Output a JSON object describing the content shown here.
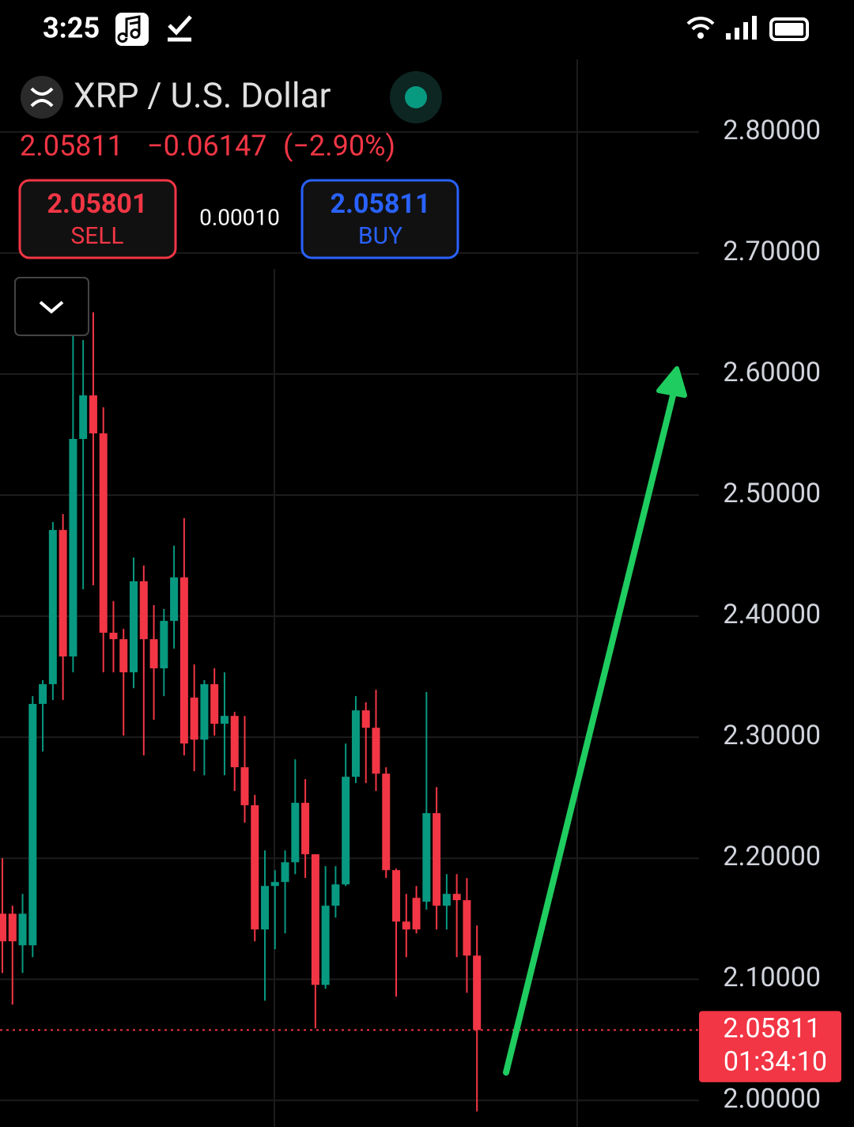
{
  "status_time": "3:25",
  "header": {
    "symbol": "XRP / U.S. Dollar",
    "price": "2.05811",
    "change": "−0.06147",
    "change_pct": "(−2.90%)"
  },
  "trade": {
    "sell_price": "2.05801",
    "sell_label": "SELL",
    "spread": "0.00010",
    "buy_price": "2.05811",
    "buy_label": "BUY"
  },
  "chart_data": {
    "type": "candlestick",
    "up_color": "#089981",
    "down_color": "#f23645",
    "ylim": [
      1.978,
      2.86
    ],
    "yticks": [
      {
        "value": 2.0,
        "label": "2.00000"
      },
      {
        "value": 2.1,
        "label": "2.10000"
      },
      {
        "value": 2.2,
        "label": "2.20000"
      },
      {
        "value": 2.3,
        "label": "2.30000"
      },
      {
        "value": 2.4,
        "label": "2.40000"
      },
      {
        "value": 2.5,
        "label": "2.50000"
      },
      {
        "value": 2.6,
        "label": "2.60000"
      },
      {
        "value": 2.7,
        "label": "2.70000"
      },
      {
        "value": 2.8,
        "label": "2.80000"
      }
    ],
    "grid": true,
    "last_price": 2.05811,
    "countdown": "01:34:10",
    "open": [
      2.1542,
      2.1542,
      2.1281,
      2.1281,
      2.3275,
      2.3438,
      2.4712,
      2.3667,
      2.5464,
      2.5824,
      2.551,
      2.3863,
      2.381,
      2.3536,
      2.4288,
      2.381,
      2.3569,
      2.3961,
      2.432,
      2.3327,
      2.298,
      2.3438,
      2.3111,
      2.3176,
      2.2752,
      2.2438,
      2.1412,
      2.1771,
      2.1804,
      2.1967,
      2.2458,
      2.2033,
      2.0954,
      2.1608,
      2.1784,
      2.2673,
      2.3222,
      2.3078,
      2.2699,
      2.1902,
      2.1477,
      2.1673,
      2.1641,
      2.2373,
      2.1608,
      2.1706,
      2.1654,
      2.1196
    ],
    "high": [
      2.2,
      2.1608,
      2.1706,
      2.334,
      2.3471,
      2.4778,
      2.4843,
      2.6608,
      2.6281,
      2.651,
      2.5725,
      2.4124,
      2.3895,
      2.4484,
      2.4418,
      2.4092,
      2.4059,
      2.4582,
      2.481,
      2.3601,
      2.3471,
      2.3569,
      2.3536,
      2.3209,
      2.3176,
      2.2523,
      2.2065,
      2.1902,
      2.2065,
      2.2817,
      2.2654,
      2.2033,
      2.1935,
      2.1935,
      2.2948,
      2.334,
      2.3288,
      2.3392,
      2.2752,
      2.1915,
      2.1706,
      2.1771,
      2.3373,
      2.2588,
      2.1869,
      2.1869,
      2.1837,
      2.1444
    ],
    "low": [
      2.1052,
      2.0791,
      2.1052,
      2.1183,
      2.2882,
      2.3307,
      2.3307,
      2.3536,
      2.4222,
      2.4255,
      2.3536,
      2.3536,
      2.3013,
      2.3405,
      2.285,
      2.3144,
      2.334,
      2.3732,
      2.285,
      2.2719,
      2.2686,
      2.3013,
      2.2686,
      2.2556,
      2.2294,
      2.1314,
      2.0824,
      2.1248,
      2.1379,
      2.1869,
      2.1837,
      2.0595,
      2.0922,
      2.151,
      2.1771,
      2.2621,
      2.2621,
      2.2556,
      2.1837,
      2.0856,
      2.1183,
      2.1379,
      2.1575,
      2.1412,
      2.1412,
      2.1183,
      2.0889,
      1.9908
    ],
    "close": [
      2.1314,
      2.1314,
      2.1542,
      2.3275,
      2.3438,
      2.4712,
      2.3667,
      2.5464,
      2.5824,
      2.551,
      2.3863,
      2.381,
      2.3536,
      2.4288,
      2.381,
      2.3569,
      2.3961,
      2.432,
      2.2948,
      2.298,
      2.3438,
      2.3111,
      2.3176,
      2.2752,
      2.2438,
      2.1412,
      2.1771,
      2.1804,
      2.1967,
      2.2458,
      2.2033,
      2.0954,
      2.1608,
      2.1784,
      2.2673,
      2.3222,
      2.3078,
      2.2699,
      2.1902,
      2.1477,
      2.1412,
      2.1412,
      2.2373,
      2.1608,
      2.1706,
      2.1654,
      2.1196,
      2.0581
    ]
  }
}
